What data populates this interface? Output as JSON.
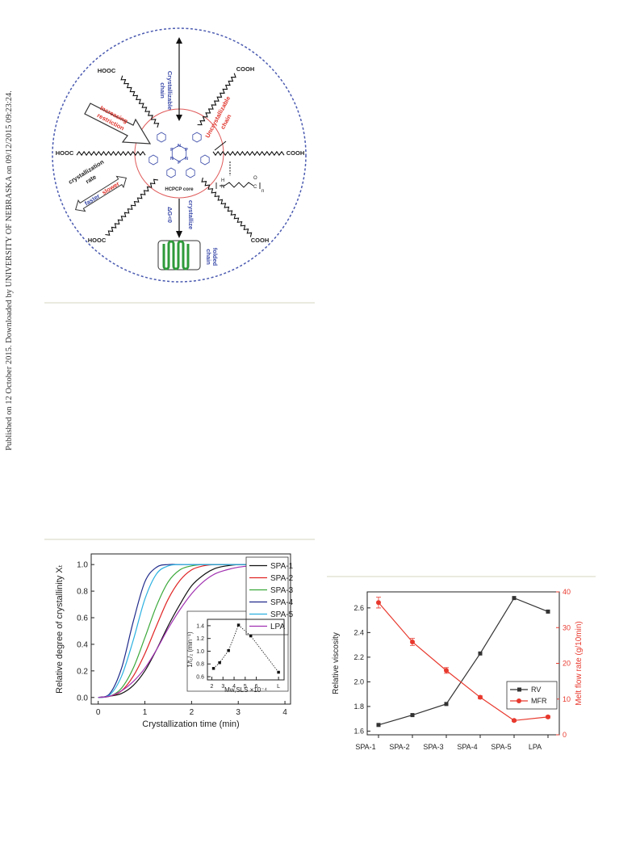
{
  "side_text": "Published on 12 October 2015. Downloaded by UNIVERSITY OF NEBRASKA on 09/12/2015 09:23:24.",
  "diagram": {
    "end_groups": [
      "HOOC",
      "COOH",
      "HOOC",
      "COOH",
      "HOOC",
      "COOH"
    ],
    "crystallizable_chain": [
      "Crystallizable",
      "chain"
    ],
    "uncrystallizable_chain": [
      "Uncrystallizable",
      "chain"
    ],
    "increasing_restriction": [
      "Increasing",
      "restriction"
    ],
    "crystallization_rate": [
      "crystallization",
      "rate"
    ],
    "faster": "faster",
    "slower": "slower",
    "core": "HCPCP core",
    "core_atoms": [
      "N",
      "P",
      "N",
      "P",
      "N",
      "P"
    ],
    "crystallize": "crystallize",
    "delta_g": "ΔG<0",
    "folded_chain": [
      "folded",
      "chain"
    ],
    "repeat_unit_atoms": [
      "H",
      "N",
      "O",
      "C",
      "n"
    ]
  },
  "chart_data": [
    {
      "type": "line",
      "x": [
        0,
        0.25,
        0.5,
        0.75,
        1,
        1.25,
        1.5,
        1.75,
        2,
        2.25,
        2.5,
        2.75,
        3,
        3.25,
        3.5,
        3.75,
        4
      ],
      "xlim": [
        -0.15,
        4.12
      ],
      "xticks": [
        0,
        1,
        2,
        3,
        4
      ],
      "ylim": [
        -0.05,
        1.08
      ],
      "yticks": [
        {
          "value": 0,
          "label": "0.0"
        },
        0.2,
        0.4,
        0.6,
        0.8,
        {
          "value": 1,
          "label": "1.0"
        }
      ],
      "xlabel": "Crystallization time (min)",
      "ylabel": "Relative degree of crystallinity Xₜ",
      "legend": "upper right",
      "series": [
        {
          "name": "SPA-1",
          "color": "#111111",
          "values": [
            0,
            0.01,
            0.03,
            0.09,
            0.2,
            0.36,
            0.54,
            0.7,
            0.84,
            0.92,
            0.97,
            0.99,
            1,
            1,
            1,
            1,
            1
          ]
        },
        {
          "name": "SPA-2",
          "color": "#e02424",
          "values": [
            0,
            0.01,
            0.05,
            0.16,
            0.33,
            0.54,
            0.74,
            0.88,
            0.96,
            0.99,
            1,
            1,
            1,
            1,
            1,
            1,
            1
          ]
        },
        {
          "name": "SPA-3",
          "color": "#3aa83a",
          "values": [
            0,
            0.01,
            0.07,
            0.22,
            0.45,
            0.69,
            0.87,
            0.96,
            0.99,
            1,
            1,
            1,
            1,
            1,
            1,
            1,
            1
          ]
        },
        {
          "name": "SPA-4",
          "color": "#1f2a8a",
          "values": [
            0,
            0.03,
            0.22,
            0.57,
            0.87,
            0.98,
            1,
            1,
            1,
            1,
            1,
            1,
            1,
            1,
            1,
            1,
            1
          ]
        },
        {
          "name": "SPA-5",
          "color": "#2ab0e0",
          "values": [
            0,
            0.02,
            0.16,
            0.43,
            0.74,
            0.93,
            0.99,
            1,
            1,
            1,
            1,
            1,
            1,
            1,
            1,
            1,
            1
          ]
        },
        {
          "name": "LPA",
          "color": "#a030b0",
          "values": [
            0,
            0.01,
            0.05,
            0.12,
            0.22,
            0.36,
            0.52,
            0.66,
            0.78,
            0.87,
            0.93,
            0.96,
            0.98,
            0.99,
            1,
            1,
            1
          ]
        }
      ]
    },
    {
      "type": "line",
      "x": [
        2.15,
        2.7,
        3.5,
        4.4,
        5.5,
        8
      ],
      "xlim": [
        1.6,
        8.5
      ],
      "xticks": [
        2,
        3,
        4,
        5,
        6,
        {
          "value": 8,
          "label": "L"
        }
      ],
      "ylim": [
        0.55,
        1.5
      ],
      "yticks": [
        0.6,
        0.8,
        {
          "value": 1,
          "label": "1.0"
        },
        1.2,
        1.4
      ],
      "xlabel": "Mw,SLS ×10⁻⁴",
      "ylabel": "1/t₁/₂ (min⁻¹)",
      "linestyle": "dotted",
      "series": [
        {
          "color": "#111111",
          "marker": "square",
          "values": [
            0.73,
            0.82,
            1.01,
            1.41,
            1.24,
            0.67
          ]
        }
      ]
    },
    {
      "type": "line",
      "categories": [
        "SPA-1",
        "SPA-2",
        "SPA-3",
        "SPA-4",
        "SPA-5",
        "LPA"
      ],
      "ylim": [
        1.57,
        2.73
      ],
      "yticks": [
        1.6,
        1.8,
        {
          "value": 2,
          "label": "2.0"
        },
        2.2,
        2.4,
        2.6
      ],
      "y2lim": [
        0,
        40
      ],
      "y2ticks": [
        0,
        10,
        20,
        30,
        40
      ],
      "ylabel": "Relative viscosity",
      "y2label": "Melt flow rate (g/10min)",
      "legend": "lower right",
      "series": [
        {
          "name": "RV",
          "color": "#333333",
          "marker": "square",
          "values": [
            1.65,
            1.73,
            1.82,
            2.23,
            2.68,
            2.57
          ]
        },
        {
          "name": "MFR",
          "color": "#e8392e",
          "marker": "circle",
          "axis": "y2",
          "values": [
            37,
            26,
            18,
            10.5,
            4,
            5
          ],
          "errors": [
            1.5,
            1,
            0.8,
            0.4,
            0.3,
            0.3
          ]
        }
      ]
    }
  ]
}
